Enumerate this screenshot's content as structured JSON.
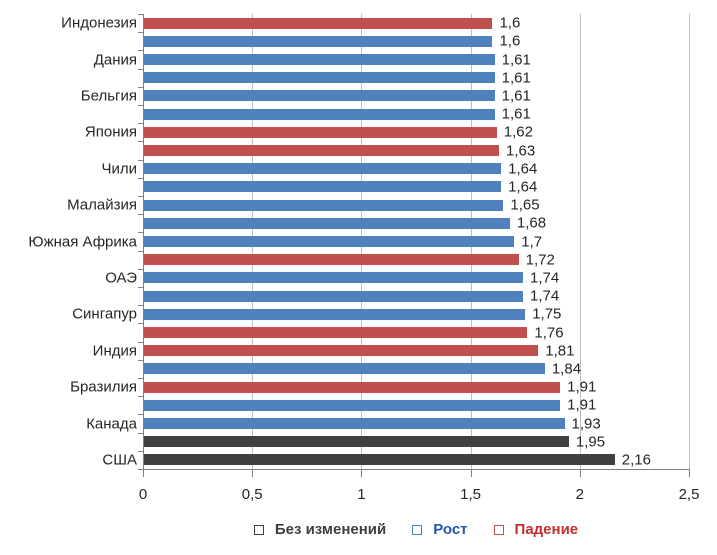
{
  "colors": {
    "background": "#FFFFFF",
    "gridline": "#BFBFBF",
    "axis": "#808080",
    "label_text": "#262626"
  },
  "chart_data": {
    "type": "bar",
    "orientation": "horizontal",
    "title": "",
    "xlabel": "",
    "ylabel": "",
    "xlim": [
      0,
      2.5
    ],
    "grid": true,
    "legend_position": "bottom",
    "x_ticks": [
      {
        "value": 0,
        "label": "0"
      },
      {
        "value": 0.5,
        "label": "0,5"
      },
      {
        "value": 1,
        "label": "1"
      },
      {
        "value": 1.5,
        "label": "1,5"
      },
      {
        "value": 2,
        "label": "2"
      },
      {
        "value": 2.5,
        "label": "2,5"
      }
    ],
    "series_colors": {
      "no_change": "#404040",
      "growth": "#4F81BD",
      "fall": "#C0504D"
    },
    "legend": [
      {
        "label": "Без изменений",
        "series": "no_change",
        "text_color": "#3F3F3F",
        "marker_color": "#404040"
      },
      {
        "label": "Рост",
        "series": "growth",
        "text_color": "#2457A8",
        "marker_color": "#4F81BD"
      },
      {
        "label": "Падение",
        "series": "fall",
        "text_color": "#C0302E",
        "marker_color": "#C0504D"
      }
    ],
    "bars": [
      {
        "label": "Индонезия",
        "value": 1.6,
        "display": "1,6",
        "series": "fall"
      },
      {
        "label": "",
        "value": 1.6,
        "display": "1,6",
        "series": "growth"
      },
      {
        "label": "Дания",
        "value": 1.61,
        "display": "1,61",
        "series": "growth"
      },
      {
        "label": "",
        "value": 1.61,
        "display": "1,61",
        "series": "growth"
      },
      {
        "label": "Бельгия",
        "value": 1.61,
        "display": "1,61",
        "series": "growth"
      },
      {
        "label": "",
        "value": 1.61,
        "display": "1,61",
        "series": "growth"
      },
      {
        "label": "Япония",
        "value": 1.62,
        "display": "1,62",
        "series": "fall"
      },
      {
        "label": "",
        "value": 1.63,
        "display": "1,63",
        "series": "fall"
      },
      {
        "label": "Чили",
        "value": 1.64,
        "display": "1,64",
        "series": "growth"
      },
      {
        "label": "",
        "value": 1.64,
        "display": "1,64",
        "series": "growth"
      },
      {
        "label": "Малайзия",
        "value": 1.65,
        "display": "1,65",
        "series": "growth"
      },
      {
        "label": "",
        "value": 1.68,
        "display": "1,68",
        "series": "growth"
      },
      {
        "label": "Южная Африка",
        "value": 1.7,
        "display": "1,7",
        "series": "growth"
      },
      {
        "label": "",
        "value": 1.72,
        "display": "1,72",
        "series": "fall"
      },
      {
        "label": "ОАЭ",
        "value": 1.74,
        "display": "1,74",
        "series": "growth"
      },
      {
        "label": "",
        "value": 1.74,
        "display": "1,74",
        "series": "growth"
      },
      {
        "label": "Сингапур",
        "value": 1.75,
        "display": "1,75",
        "series": "growth"
      },
      {
        "label": "",
        "value": 1.76,
        "display": "1,76",
        "series": "fall"
      },
      {
        "label": "Индия",
        "value": 1.81,
        "display": "1,81",
        "series": "fall"
      },
      {
        "label": "",
        "value": 1.84,
        "display": "1,84",
        "series": "growth"
      },
      {
        "label": "Бразилия",
        "value": 1.91,
        "display": "1,91",
        "series": "fall"
      },
      {
        "label": "",
        "value": 1.91,
        "display": "1,91",
        "series": "growth"
      },
      {
        "label": "Канада",
        "value": 1.93,
        "display": "1,93",
        "series": "growth"
      },
      {
        "label": "",
        "value": 1.95,
        "display": "1,95",
        "series": "no_change"
      },
      {
        "label": "США",
        "value": 2.16,
        "display": "2,16",
        "series": "no_change"
      }
    ]
  }
}
